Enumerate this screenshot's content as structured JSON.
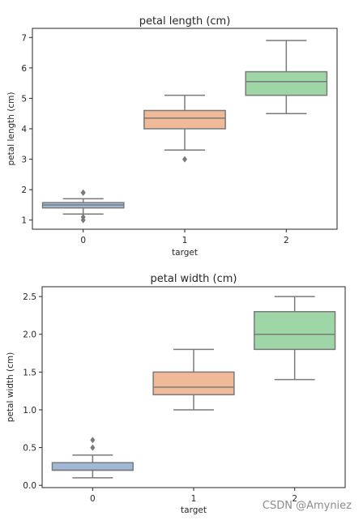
{
  "chart_data": [
    {
      "type": "box",
      "title": "petal length (cm)",
      "xlabel": "target",
      "ylabel": "petal length (cm)",
      "categories": [
        "0",
        "1",
        "2"
      ],
      "ylim": [
        0.7,
        7.3
      ],
      "yticks": [
        "1",
        "2",
        "3",
        "4",
        "5",
        "6",
        "7"
      ],
      "grid": false,
      "boxes": [
        {
          "category": "0",
          "whisker_low": 1.2,
          "q1": 1.4,
          "median": 1.5,
          "q3": 1.575,
          "whisker_high": 1.7,
          "outliers": [
            1.0,
            1.1,
            1.9,
            1.9
          ],
          "color": "#a1b8d6"
        },
        {
          "category": "1",
          "whisker_low": 3.3,
          "q1": 4.0,
          "median": 4.35,
          "q3": 4.6,
          "whisker_high": 5.1,
          "outliers": [
            3.0
          ],
          "color": "#f0b997"
        },
        {
          "category": "2",
          "whisker_low": 4.5,
          "q1": 5.1,
          "median": 5.55,
          "q3": 5.875,
          "whisker_high": 6.9,
          "outliers": [],
          "color": "#9ed6a8"
        }
      ]
    },
    {
      "type": "box",
      "title": "petal width (cm)",
      "xlabel": "target",
      "ylabel": "petal width (cm)",
      "categories": [
        "0",
        "1",
        "2"
      ],
      "ylim": [
        -0.03,
        2.63
      ],
      "yticks": [
        "0.0",
        "0.5",
        "1.0",
        "1.5",
        "2.0",
        "2.5"
      ],
      "grid": false,
      "boxes": [
        {
          "category": "0",
          "whisker_low": 0.1,
          "q1": 0.2,
          "median": 0.2,
          "q3": 0.3,
          "whisker_high": 0.4,
          "outliers": [
            0.5,
            0.6
          ],
          "color": "#a1b8d6"
        },
        {
          "category": "1",
          "whisker_low": 1.0,
          "q1": 1.2,
          "median": 1.3,
          "q3": 1.5,
          "whisker_high": 1.8,
          "outliers": [],
          "color": "#f0b997"
        },
        {
          "category": "2",
          "whisker_low": 1.4,
          "q1": 1.8,
          "median": 2.0,
          "q3": 2.3,
          "whisker_high": 2.5,
          "outliers": [],
          "color": "#9ed6a8"
        }
      ]
    }
  ],
  "watermark": "CSDN @Amyniez"
}
